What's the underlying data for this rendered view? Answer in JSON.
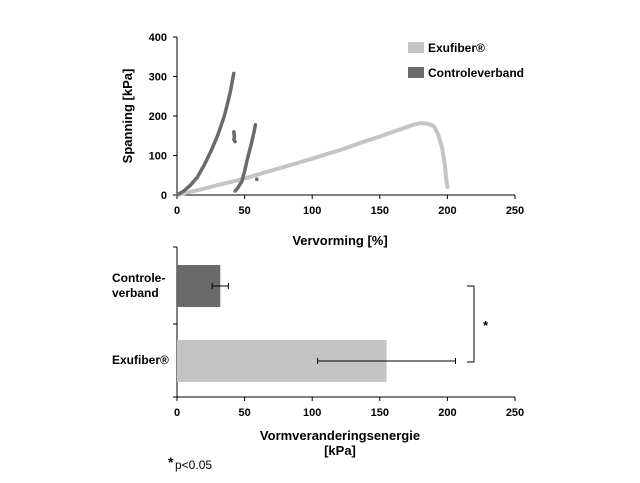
{
  "chart_data": [
    {
      "type": "scatter",
      "xlabel": "Vervorming [%]",
      "ylabel": "Spanning [kPa]",
      "xlim": [
        0,
        250
      ],
      "ylim": [
        0,
        400
      ],
      "xticks": [
        "0",
        "50",
        "100",
        "150",
        "200",
        "250"
      ],
      "yticks": [
        "0",
        "100",
        "200",
        "300",
        "400"
      ],
      "legend_position": "top-right",
      "series": [
        {
          "name": "Exufiber®",
          "color": "#c4c4c4",
          "x": [
            0,
            10,
            20,
            30,
            40,
            50,
            60,
            70,
            80,
            90,
            100,
            110,
            120,
            130,
            140,
            150,
            160,
            170,
            175,
            180,
            185,
            190,
            193,
            196,
            198,
            199,
            200
          ],
          "y": [
            0,
            8,
            16,
            25,
            33,
            42,
            52,
            62,
            72,
            82,
            92,
            103,
            113,
            125,
            137,
            148,
            160,
            172,
            178,
            182,
            181,
            174,
            155,
            120,
            80,
            45,
            20
          ]
        },
        {
          "name": "Controleverband",
          "color": "#6a6a6a",
          "segments": [
            {
              "x": [
                0,
                5,
                10,
                15,
                20,
                25,
                30,
                35,
                38,
                40,
                41,
                42
              ],
              "y": [
                0,
                10,
                25,
                45,
                75,
                110,
                150,
                200,
                240,
                270,
                290,
                308
              ]
            },
            {
              "x": [
                42,
                42.5,
                42,
                43
              ],
              "y": [
                160,
                148,
                140,
                135
              ]
            },
            {
              "x": [
                43,
                45,
                48,
                50,
                52,
                55,
                57,
                58
              ],
              "y": [
                10,
                18,
                35,
                60,
                90,
                130,
                160,
                178
              ]
            },
            {
              "x": [
                59
              ],
              "y": [
                40
              ]
            }
          ]
        }
      ]
    },
    {
      "type": "bar",
      "orientation": "horizontal",
      "xlabel_line1": "Vormveranderingsenergie",
      "xlabel_line2": "[kPa]",
      "xlim": [
        0,
        250
      ],
      "xticks": [
        "0",
        "50",
        "100",
        "150",
        "200",
        "250"
      ],
      "categories": [
        {
          "line1": "Controle-",
          "line2": "verband"
        },
        {
          "line1": "Exufiber®",
          "line2": ""
        }
      ],
      "values": [
        32,
        155
      ],
      "errors": [
        6,
        51
      ],
      "colors": [
        "#6a6a6a",
        "#c4c4c4"
      ],
      "significance_marker": "*"
    }
  ],
  "footnote": {
    "star": "*",
    "text": "p<0.05"
  }
}
